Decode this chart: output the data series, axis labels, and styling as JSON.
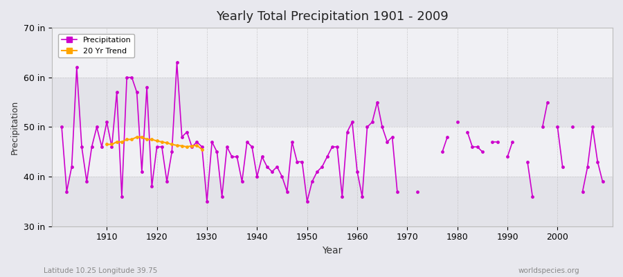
{
  "title": "Yearly Total Precipitation 1901 - 2009",
  "xlabel": "Year",
  "ylabel": "Precipitation",
  "subtitle": "Latitude 10.25 Longitude 39.75",
  "watermark": "worldspecies.org",
  "precip_color": "#cc00cc",
  "trend_color": "#ffa500",
  "ylim": [
    30,
    70
  ],
  "yticks": [
    30,
    40,
    50,
    60,
    70
  ],
  "ytick_labels": [
    "30 in",
    "40 in",
    "50 in",
    "60 in",
    "70 in"
  ],
  "precip_data": [
    [
      1901,
      50
    ],
    [
      1902,
      37
    ],
    [
      1903,
      42
    ],
    [
      1904,
      62
    ],
    [
      1905,
      46
    ],
    [
      1906,
      39
    ],
    [
      1907,
      46
    ],
    [
      1908,
      50
    ],
    [
      1909,
      46
    ],
    [
      1910,
      51
    ],
    [
      1911,
      46
    ],
    [
      1912,
      57
    ],
    [
      1913,
      36
    ],
    [
      1914,
      60
    ],
    [
      1915,
      60
    ],
    [
      1916,
      57
    ],
    [
      1917,
      41
    ],
    [
      1918,
      58
    ],
    [
      1919,
      38
    ],
    [
      1920,
      46
    ],
    [
      1921,
      46
    ],
    [
      1922,
      39
    ],
    [
      1923,
      45
    ],
    [
      1924,
      63
    ],
    [
      1925,
      48
    ],
    [
      1926,
      49
    ],
    [
      1927,
      46
    ],
    [
      1928,
      47
    ],
    [
      1929,
      46
    ],
    [
      1930,
      35
    ],
    [
      1931,
      47
    ],
    [
      1932,
      45
    ],
    [
      1933,
      36
    ],
    [
      1934,
      46
    ],
    [
      1935,
      44
    ],
    [
      1936,
      44
    ],
    [
      1937,
      39
    ],
    [
      1938,
      47
    ],
    [
      1939,
      46
    ],
    [
      1940,
      40
    ],
    [
      1941,
      44
    ],
    [
      1942,
      42
    ],
    [
      1943,
      41
    ],
    [
      1944,
      42
    ],
    [
      1945,
      40
    ],
    [
      1946,
      37
    ],
    [
      1947,
      47
    ],
    [
      1948,
      43
    ],
    [
      1949,
      43
    ],
    [
      1950,
      35
    ],
    [
      1951,
      39
    ],
    [
      1952,
      41
    ],
    [
      1953,
      42
    ],
    [
      1954,
      44
    ],
    [
      1955,
      46
    ],
    [
      1956,
      46
    ],
    [
      1957,
      36
    ],
    [
      1958,
      49
    ],
    [
      1959,
      51
    ],
    [
      1960,
      41
    ],
    [
      1961,
      36
    ],
    [
      1962,
      50
    ],
    [
      1963,
      51
    ],
    [
      1964,
      55
    ],
    [
      1965,
      50
    ],
    [
      1966,
      47
    ],
    [
      1967,
      48
    ],
    [
      1968,
      37
    ],
    [
      1972,
      37
    ],
    [
      1977,
      45
    ],
    [
      1978,
      48
    ],
    [
      1980,
      51
    ],
    [
      1982,
      49
    ],
    [
      1983,
      46
    ],
    [
      1984,
      46
    ],
    [
      1985,
      45
    ],
    [
      1987,
      47
    ],
    [
      1988,
      47
    ],
    [
      1990,
      44
    ],
    [
      1991,
      47
    ],
    [
      1994,
      43
    ],
    [
      1995,
      36
    ],
    [
      1997,
      50
    ],
    [
      1998,
      55
    ],
    [
      2000,
      50
    ],
    [
      2001,
      42
    ],
    [
      2003,
      50
    ],
    [
      2005,
      37
    ],
    [
      2006,
      42
    ],
    [
      2007,
      50
    ],
    [
      2008,
      43
    ],
    [
      2009,
      39
    ]
  ],
  "trend_data": [
    [
      1910,
      46.5
    ],
    [
      1911,
      46.5
    ],
    [
      1912,
      47.0
    ],
    [
      1913,
      47.0
    ],
    [
      1914,
      47.5
    ],
    [
      1915,
      47.5
    ],
    [
      1916,
      48.0
    ],
    [
      1917,
      48.0
    ],
    [
      1918,
      47.5
    ],
    [
      1919,
      47.5
    ],
    [
      1920,
      47.2
    ],
    [
      1921,
      47.0
    ],
    [
      1922,
      46.8
    ],
    [
      1923,
      46.5
    ],
    [
      1924,
      46.3
    ],
    [
      1925,
      46.2
    ],
    [
      1926,
      46.0
    ],
    [
      1927,
      46.2
    ],
    [
      1928,
      46.3
    ],
    [
      1929,
      45.5
    ]
  ]
}
